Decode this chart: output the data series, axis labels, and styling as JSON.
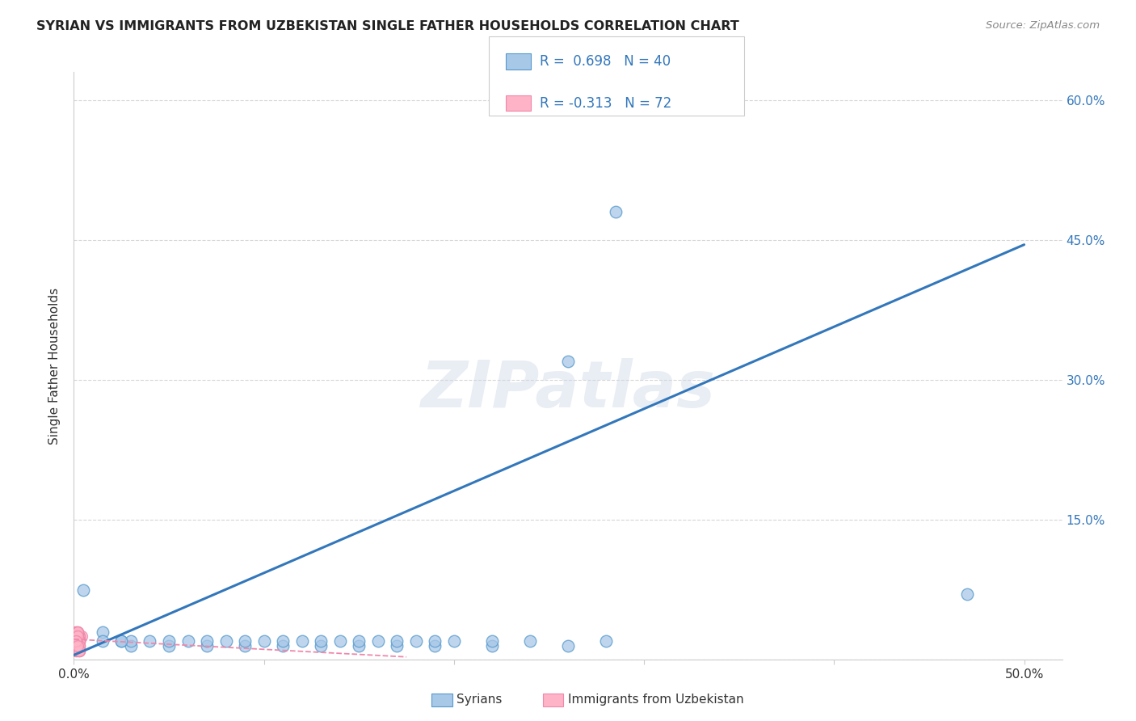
{
  "title": "SYRIAN VS IMMIGRANTS FROM UZBEKISTAN SINGLE FATHER HOUSEHOLDS CORRELATION CHART",
  "source": "Source: ZipAtlas.com",
  "ylabel": "Single Father Households",
  "xlim": [
    0.0,
    0.52
  ],
  "ylim": [
    0.0,
    0.63
  ],
  "xtick_positions": [
    0.0,
    0.1,
    0.2,
    0.3,
    0.4,
    0.5
  ],
  "xticklabels": [
    "0.0%",
    "",
    "",
    "",
    "",
    "50.0%"
  ],
  "ytick_positions": [
    0.0,
    0.15,
    0.3,
    0.45,
    0.6
  ],
  "right_ytick_positions": [
    0.15,
    0.3,
    0.45,
    0.6
  ],
  "right_ytick_labels": [
    "15.0%",
    "30.0%",
    "45.0%",
    "60.0%"
  ],
  "color_blue_fill": "#a8c8e8",
  "color_blue_edge": "#5599cc",
  "color_blue_line": "#3377bb",
  "color_pink_fill": "#ffb3c6",
  "color_pink_edge": "#ee88aa",
  "color_pink_line": "#ee88aa",
  "color_text_blue": "#3377bb",
  "color_text_dark": "#333333",
  "watermark": "ZIPatlas",
  "blue_trend_x": [
    0.0,
    0.5
  ],
  "blue_trend_y": [
    0.005,
    0.445
  ],
  "pink_trend_x": [
    0.0,
    0.175
  ],
  "pink_trend_y": [
    0.022,
    0.003
  ],
  "syrians_x": [
    0.005,
    0.015,
    0.025,
    0.03,
    0.04,
    0.05,
    0.06,
    0.07,
    0.08,
    0.09,
    0.1,
    0.11,
    0.12,
    0.13,
    0.14,
    0.15,
    0.16,
    0.17,
    0.18,
    0.19,
    0.2,
    0.22,
    0.24,
    0.26,
    0.28,
    0.03,
    0.05,
    0.07,
    0.09,
    0.11,
    0.13,
    0.15,
    0.17,
    0.19,
    0.22,
    0.26,
    0.47,
    0.285,
    0.015,
    0.025
  ],
  "syrians_y": [
    0.075,
    0.03,
    0.02,
    0.015,
    0.02,
    0.015,
    0.02,
    0.015,
    0.02,
    0.015,
    0.02,
    0.015,
    0.02,
    0.015,
    0.02,
    0.015,
    0.02,
    0.015,
    0.02,
    0.015,
    0.02,
    0.015,
    0.02,
    0.015,
    0.02,
    0.02,
    0.02,
    0.02,
    0.02,
    0.02,
    0.02,
    0.02,
    0.02,
    0.02,
    0.02,
    0.32,
    0.07,
    0.48,
    0.02,
    0.02
  ],
  "uzbek_x": [
    0.001,
    0.002,
    0.001,
    0.003,
    0.002,
    0.001,
    0.004,
    0.002,
    0.003,
    0.001,
    0.002,
    0.003,
    0.001,
    0.002,
    0.001,
    0.003,
    0.002,
    0.001,
    0.003,
    0.002,
    0.001,
    0.002,
    0.003,
    0.001,
    0.002,
    0.003,
    0.001,
    0.002,
    0.001,
    0.003,
    0.002,
    0.001,
    0.003,
    0.002,
    0.001,
    0.002,
    0.003,
    0.001,
    0.002,
    0.003,
    0.001,
    0.002,
    0.003,
    0.001,
    0.002,
    0.003,
    0.001,
    0.002,
    0.003,
    0.001,
    0.002,
    0.003,
    0.001,
    0.002,
    0.003,
    0.001,
    0.002,
    0.003,
    0.001,
    0.002,
    0.003,
    0.001,
    0.002,
    0.003,
    0.001,
    0.002,
    0.003,
    0.001,
    0.002,
    0.003,
    0.001,
    0.002
  ],
  "uzbek_y": [
    0.02,
    0.025,
    0.015,
    0.02,
    0.01,
    0.03,
    0.025,
    0.02,
    0.015,
    0.02,
    0.015,
    0.025,
    0.03,
    0.02,
    0.01,
    0.02,
    0.025,
    0.015,
    0.02,
    0.025,
    0.03,
    0.015,
    0.02,
    0.01,
    0.025,
    0.02,
    0.015,
    0.02,
    0.025,
    0.01,
    0.02,
    0.015,
    0.025,
    0.02,
    0.01,
    0.015,
    0.02,
    0.025,
    0.03,
    0.015,
    0.02,
    0.025,
    0.01,
    0.02,
    0.015,
    0.02,
    0.025,
    0.03,
    0.015,
    0.02,
    0.025,
    0.01,
    0.02,
    0.015,
    0.02,
    0.025,
    0.03,
    0.015,
    0.02,
    0.025,
    0.01,
    0.02,
    0.015,
    0.02,
    0.025,
    0.03,
    0.015,
    0.02,
    0.025,
    0.01,
    0.02,
    0.015
  ]
}
